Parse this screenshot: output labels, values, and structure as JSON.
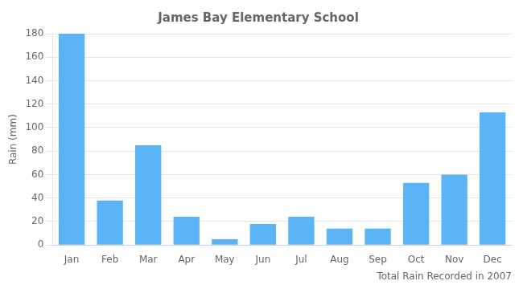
{
  "chart_data": {
    "type": "bar",
    "title": "James Bay Elementary School",
    "xlabel": "Total Rain Recorded in 2007",
    "ylabel": "Rain (mm)",
    "categories": [
      "Jan",
      "Feb",
      "Mar",
      "Apr",
      "May",
      "Jun",
      "Jul",
      "Aug",
      "Sep",
      "Oct",
      "Nov",
      "Dec"
    ],
    "values": [
      180,
      38,
      85,
      24,
      5,
      18,
      24,
      14,
      14,
      53,
      60,
      113
    ],
    "color": "#5ab4f5",
    "ylim": [
      0,
      180
    ],
    "yticks": [
      0,
      20,
      40,
      60,
      80,
      100,
      120,
      140,
      160,
      180
    ],
    "grid": true
  }
}
